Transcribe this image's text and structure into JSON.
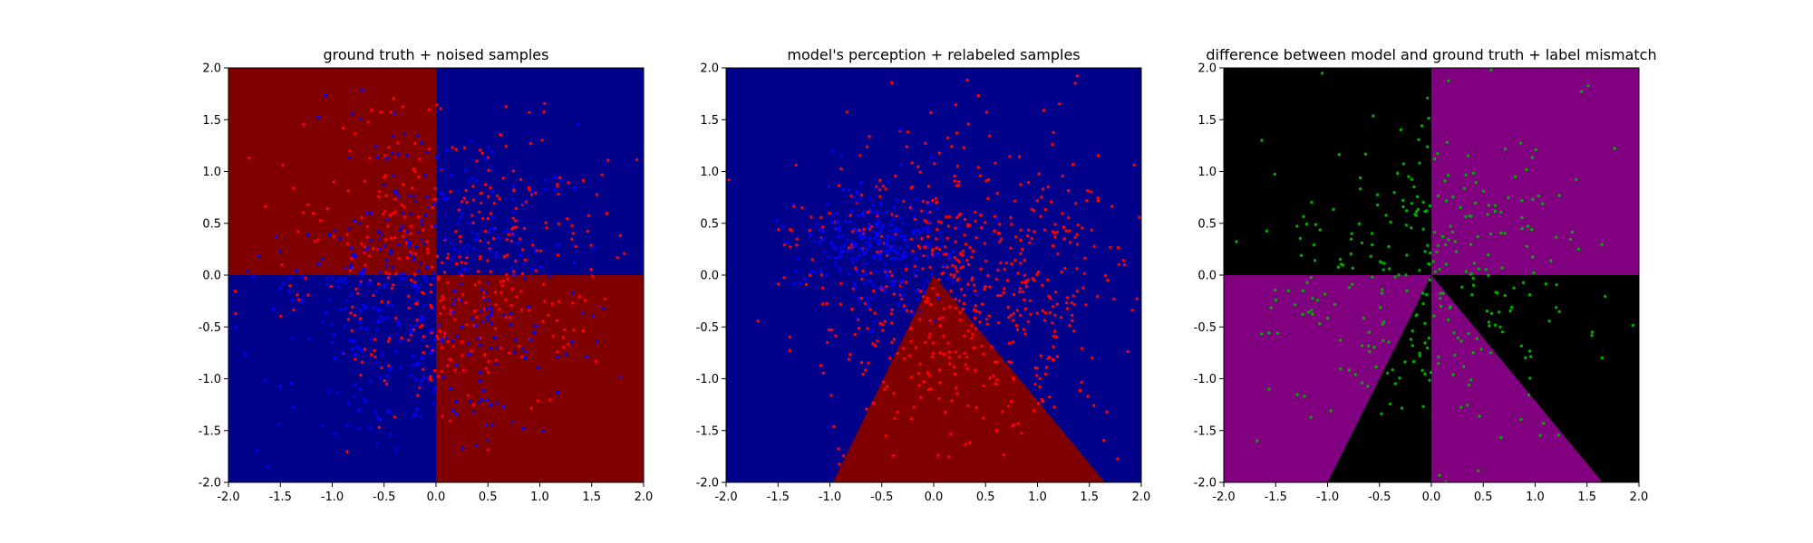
{
  "chart_data": [
    {
      "type": "scatter",
      "title": "ground truth + noised samples",
      "xlim": [
        -2.0,
        2.0
      ],
      "ylim": [
        -2.0,
        2.0
      ],
      "xticks": [
        "-2.0",
        "-1.5",
        "-1.0",
        "-0.5",
        "0.0",
        "0.5",
        "1.0",
        "1.5",
        "2.0"
      ],
      "yticks": [
        "-2.0",
        "-1.5",
        "-1.0",
        "-0.5",
        "0.0",
        "0.5",
        "1.0",
        "1.5",
        "2.0"
      ],
      "background_regions": [
        {
          "shape": "rect",
          "x": [
            -2,
            0
          ],
          "y": [
            0,
            2
          ],
          "color": "#800000"
        },
        {
          "shape": "rect",
          "x": [
            0,
            2
          ],
          "y": [
            0,
            2
          ],
          "color": "#00008b"
        },
        {
          "shape": "rect",
          "x": [
            -2,
            0
          ],
          "y": [
            -2,
            0
          ],
          "color": "#00008b"
        },
        {
          "shape": "rect",
          "x": [
            0,
            2
          ],
          "y": [
            -2,
            0
          ],
          "color": "#800000"
        }
      ],
      "series": [
        {
          "color": "#ff0000",
          "count": 420,
          "distribution": "gaussian",
          "center": [
            0.15,
            0.1
          ],
          "spread": [
            0.8,
            0.7
          ]
        },
        {
          "color": "#0000ff",
          "count": 430,
          "distribution": "gaussian",
          "center": [
            -0.2,
            -0.1
          ],
          "spread": [
            0.75,
            0.75
          ]
        }
      ]
    },
    {
      "type": "scatter",
      "title": "model's perception + relabeled samples",
      "xlim": [
        -2.0,
        2.0
      ],
      "ylim": [
        -2.0,
        2.0
      ],
      "xticks": [
        "-2.0",
        "-1.5",
        "-1.0",
        "-0.5",
        "0.0",
        "0.5",
        "1.0",
        "1.5",
        "2.0"
      ],
      "yticks": [
        "-2.0",
        "-1.5",
        "-1.0",
        "-0.5",
        "0.0",
        "0.5",
        "1.0",
        "1.5",
        "2.0"
      ],
      "background_regions": [
        {
          "shape": "rect",
          "x": [
            -2,
            2
          ],
          "y": [
            -2,
            2
          ],
          "color": "#00008b"
        },
        {
          "shape": "polygon",
          "points": [
            [
              0,
              0
            ],
            [
              -0.97,
              -2
            ],
            [
              1.65,
              -2
            ]
          ],
          "color": "#800000"
        }
      ],
      "series": [
        {
          "color": "#ff0000",
          "count": 640,
          "distribution": "gaussian",
          "center": [
            0.3,
            -0.1
          ],
          "spread": [
            0.75,
            0.75
          ]
        },
        {
          "color": "#0000ff",
          "count": 260,
          "distribution": "gaussian",
          "center": [
            -0.55,
            0.35
          ],
          "spread": [
            0.35,
            0.3
          ]
        }
      ]
    },
    {
      "type": "scatter",
      "title": "difference between model and ground truth + label mismatch",
      "xlim": [
        -2.0,
        2.0
      ],
      "ylim": [
        -2.0,
        2.0
      ],
      "xticks": [
        "-2.0",
        "-1.5",
        "-1.0",
        "-0.5",
        "0.0",
        "0.5",
        "1.0",
        "1.5",
        "2.0"
      ],
      "yticks": [
        "-2.0",
        "-1.5",
        "-1.0",
        "-0.5",
        "0.0",
        "0.5",
        "1.0",
        "1.5",
        "2.0"
      ],
      "background_regions": [
        {
          "shape": "rect",
          "x": [
            -2,
            2
          ],
          "y": [
            -2,
            2
          ],
          "color": "#000000"
        },
        {
          "shape": "rect",
          "x": [
            0,
            2
          ],
          "y": [
            0,
            2
          ],
          "color": "#800080"
        },
        {
          "shape": "polygon",
          "points": [
            [
              -2,
              0
            ],
            [
              0,
              0
            ],
            [
              -1,
              -2
            ],
            [
              -2,
              -2
            ]
          ],
          "color": "#800080"
        },
        {
          "shape": "polygon",
          "points": [
            [
              0,
              0
            ],
            [
              1.65,
              -2
            ],
            [
              0,
              -2
            ]
          ],
          "color": "#800080"
        }
      ],
      "series": [
        {
          "color": "#00aa00",
          "count": 330,
          "distribution": "gaussian",
          "center": [
            0.0,
            0.0
          ],
          "spread": [
            0.85,
            0.85
          ]
        }
      ]
    }
  ]
}
